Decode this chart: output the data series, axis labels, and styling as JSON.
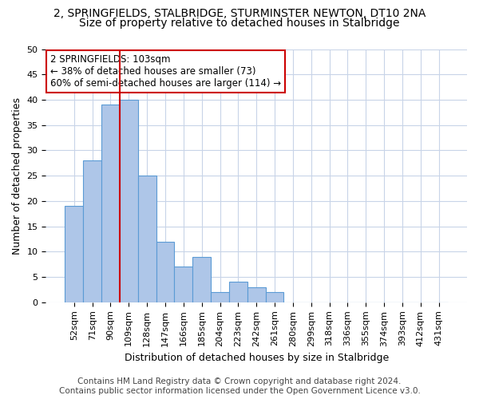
{
  "title": "2, SPRINGFIELDS, STALBRIDGE, STURMINSTER NEWTON, DT10 2NA",
  "subtitle": "Size of property relative to detached houses in Stalbridge",
  "xlabel": "Distribution of detached houses by size in Stalbridge",
  "ylabel": "Number of detached properties",
  "bar_values": [
    19,
    28,
    39,
    40,
    25,
    12,
    7,
    9,
    2,
    4,
    3,
    2,
    0,
    0,
    0,
    0,
    0,
    0,
    0,
    0,
    0
  ],
  "bin_labels": [
    "52sqm",
    "71sqm",
    "90sqm",
    "109sqm",
    "128sqm",
    "147sqm",
    "166sqm",
    "185sqm",
    "204sqm",
    "223sqm",
    "242sqm",
    "261sqm",
    "280sqm",
    "299sqm",
    "318sqm",
    "336sqm",
    "355sqm",
    "374sqm",
    "393sqm",
    "412sqm",
    "431sqm"
  ],
  "bar_color": "#aec6e8",
  "bar_edge_color": "#5b9bd5",
  "vline_x": 2.5,
  "vline_color": "#cc0000",
  "annotation_text": "2 SPRINGFIELDS: 103sqm\n← 38% of detached houses are smaller (73)\n60% of semi-detached houses are larger (114) →",
  "annotation_box_color": "#ffffff",
  "annotation_box_edge": "#cc0000",
  "ylim": [
    0,
    50
  ],
  "yticks": [
    0,
    5,
    10,
    15,
    20,
    25,
    30,
    35,
    40,
    45,
    50
  ],
  "grid_color": "#c8d4e8",
  "footer_text": "Contains HM Land Registry data © Crown copyright and database right 2024.\nContains public sector information licensed under the Open Government Licence v3.0.",
  "title_fontsize": 10,
  "subtitle_fontsize": 10,
  "xlabel_fontsize": 9,
  "ylabel_fontsize": 9,
  "tick_fontsize": 8,
  "annotation_fontsize": 8.5,
  "footer_fontsize": 7.5
}
